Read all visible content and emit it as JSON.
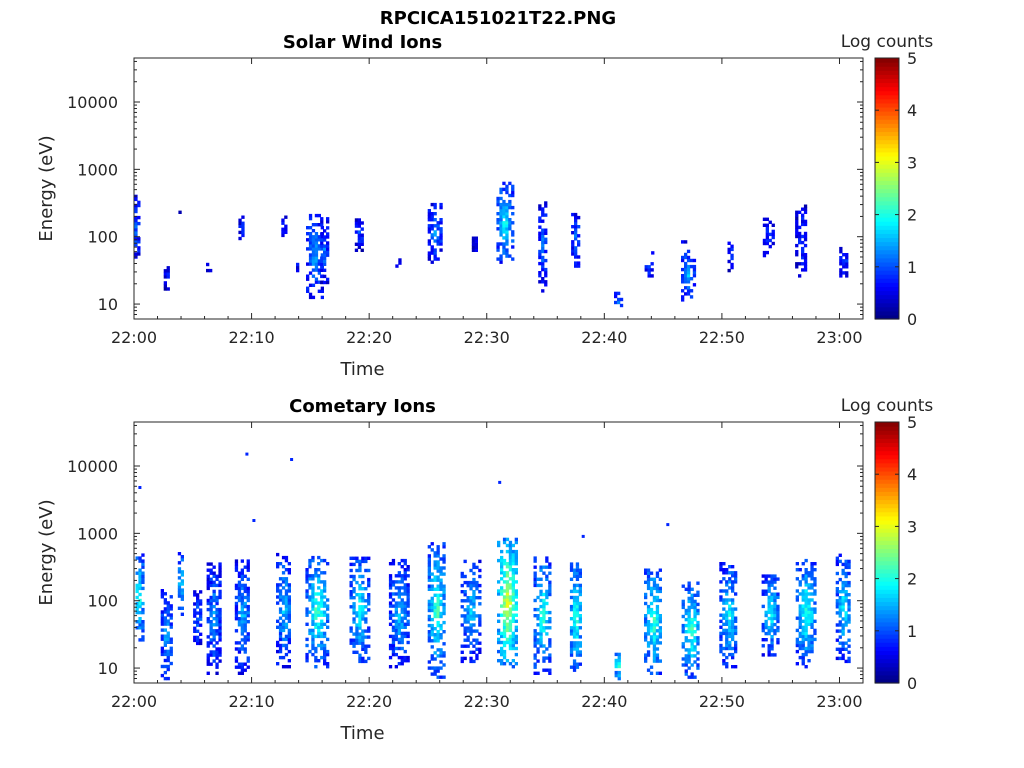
{
  "figure_title": "RPCICA151021T22.PNG",
  "chart_data": [
    {
      "type": "heatmap",
      "title": "Solar Wind Ions",
      "xlabel": "Time",
      "ylabel": "Energy (eV)",
      "x_tick_labels": [
        "22:00",
        "22:10",
        "22:20",
        "22:30",
        "22:40",
        "22:50",
        "23:00"
      ],
      "x_ticks_minutes": [
        0,
        10,
        20,
        30,
        40,
        50,
        60
      ],
      "xlim_minutes": [
        0,
        62
      ],
      "y_scale": "log",
      "ylim": [
        6,
        45000
      ],
      "y_tick_values": [
        10,
        100,
        1000,
        10000
      ],
      "y_tick_labels": [
        "10",
        "100",
        "1000",
        "10000"
      ],
      "colorbar": {
        "label": "Log counts",
        "range": [
          0,
          5
        ],
        "tick_labels": [
          "0",
          "1",
          "2",
          "3",
          "4",
          "5"
        ],
        "colormap": "jet"
      },
      "bursts": [
        {
          "t": 0.2,
          "w": 0.6,
          "elo": 35,
          "ehi": 420,
          "lvl": 0.9
        },
        {
          "t": 2.8,
          "w": 0.3,
          "elo": 16,
          "ehi": 45,
          "lvl": 0.6
        },
        {
          "t": 4.0,
          "w": 0.2,
          "elo": 220,
          "ehi": 260,
          "lvl": 0.6
        },
        {
          "t": 6.4,
          "w": 0.3,
          "elo": 30,
          "ehi": 40,
          "lvl": 0.6
        },
        {
          "t": 6.7,
          "w": 0.2,
          "elo": 160,
          "ehi": 190,
          "lvl": 0.6
        },
        {
          "t": 9.2,
          "w": 0.4,
          "elo": 90,
          "ehi": 190,
          "lvl": 0.7
        },
        {
          "t": 12.8,
          "w": 0.3,
          "elo": 100,
          "ehi": 190,
          "lvl": 0.7
        },
        {
          "t": 13.8,
          "w": 0.3,
          "elo": 30,
          "ehi": 40,
          "lvl": 0.6
        },
        {
          "t": 15.4,
          "w": 1.3,
          "elo": 12,
          "ehi": 200,
          "lvl": 1.2
        },
        {
          "t": 16.2,
          "w": 0.5,
          "elo": 20,
          "ehi": 180,
          "lvl": 1.0
        },
        {
          "t": 18.2,
          "w": 0.3,
          "elo": 330,
          "ehi": 360,
          "lvl": 0.6
        },
        {
          "t": 19.2,
          "w": 0.6,
          "elo": 60,
          "ehi": 200,
          "lvl": 0.8
        },
        {
          "t": 22.5,
          "w": 0.3,
          "elo": 35,
          "ehi": 45,
          "lvl": 0.6
        },
        {
          "t": 25.6,
          "w": 1.0,
          "elo": 40,
          "ehi": 300,
          "lvl": 1.1
        },
        {
          "t": 29.0,
          "w": 0.3,
          "elo": 60,
          "ehi": 100,
          "lvl": 0.6
        },
        {
          "t": 31.6,
          "w": 1.3,
          "elo": 40,
          "ehi": 600,
          "lvl": 1.6
        },
        {
          "t": 34.8,
          "w": 0.6,
          "elo": 15,
          "ehi": 330,
          "lvl": 1.0
        },
        {
          "t": 37.6,
          "w": 0.6,
          "elo": 35,
          "ehi": 220,
          "lvl": 1.0
        },
        {
          "t": 41.2,
          "w": 0.5,
          "elo": 6,
          "ehi": 16,
          "lvl": 1.0
        },
        {
          "t": 43.8,
          "w": 0.5,
          "elo": 25,
          "ehi": 45,
          "lvl": 0.9
        },
        {
          "t": 44.2,
          "w": 0.2,
          "elo": 55,
          "ehi": 65,
          "lvl": 0.7
        },
        {
          "t": 47.2,
          "w": 1.1,
          "elo": 11,
          "ehi": 60,
          "lvl": 1.3
        },
        {
          "t": 46.8,
          "w": 0.3,
          "elo": 80,
          "ehi": 90,
          "lvl": 0.7
        },
        {
          "t": 50.8,
          "w": 0.4,
          "elo": 30,
          "ehi": 85,
          "lvl": 0.8
        },
        {
          "t": 54.0,
          "w": 0.8,
          "elo": 50,
          "ehi": 190,
          "lvl": 0.7
        },
        {
          "t": 56.8,
          "w": 0.9,
          "elo": 25,
          "ehi": 300,
          "lvl": 0.8
        },
        {
          "t": 60.4,
          "w": 0.6,
          "elo": 25,
          "ehi": 65,
          "lvl": 0.8
        }
      ]
    },
    {
      "type": "heatmap",
      "title": "Cometary Ions",
      "xlabel": "Time",
      "ylabel": "Energy (eV)",
      "x_tick_labels": [
        "22:00",
        "22:10",
        "22:20",
        "22:30",
        "22:40",
        "22:50",
        "23:00"
      ],
      "x_ticks_minutes": [
        0,
        10,
        20,
        30,
        40,
        50,
        60
      ],
      "xlim_minutes": [
        0,
        62
      ],
      "y_scale": "log",
      "ylim": [
        6,
        45000
      ],
      "y_tick_values": [
        10,
        100,
        1000,
        10000
      ],
      "y_tick_labels": [
        "10",
        "100",
        "1000",
        "10000"
      ],
      "colorbar": {
        "label": "Log counts",
        "range": [
          0,
          5
        ],
        "tick_labels": [
          "0",
          "1",
          "2",
          "3",
          "4",
          "5"
        ],
        "colormap": "jet"
      },
      "bursts": [
        {
          "t": 0.4,
          "w": 0.8,
          "elo": 25,
          "ehi": 500,
          "lvl": 1.8
        },
        {
          "t": 2.8,
          "w": 0.8,
          "elo": 6,
          "ehi": 150,
          "lvl": 1.3
        },
        {
          "t": 4.0,
          "w": 0.3,
          "elo": 60,
          "ehi": 500,
          "lvl": 1.6
        },
        {
          "t": 5.5,
          "w": 0.7,
          "elo": 20,
          "ehi": 150,
          "lvl": 1.0
        },
        {
          "t": 6.8,
          "w": 1.0,
          "elo": 8,
          "ehi": 350,
          "lvl": 1.2
        },
        {
          "t": 9.3,
          "w": 1.2,
          "elo": 8,
          "ehi": 400,
          "lvl": 1.3
        },
        {
          "t": 12.8,
          "w": 1.2,
          "elo": 10,
          "ehi": 500,
          "lvl": 1.4
        },
        {
          "t": 15.6,
          "w": 1.8,
          "elo": 10,
          "ehi": 450,
          "lvl": 1.9
        },
        {
          "t": 19.2,
          "w": 1.5,
          "elo": 12,
          "ehi": 450,
          "lvl": 1.7
        },
        {
          "t": 22.6,
          "w": 1.6,
          "elo": 10,
          "ehi": 400,
          "lvl": 1.4
        },
        {
          "t": 25.8,
          "w": 1.4,
          "elo": 7,
          "ehi": 700,
          "lvl": 1.9
        },
        {
          "t": 28.7,
          "w": 1.6,
          "elo": 12,
          "ehi": 400,
          "lvl": 1.4
        },
        {
          "t": 31.8,
          "w": 1.6,
          "elo": 10,
          "ehi": 800,
          "lvl": 2.6
        },
        {
          "t": 34.8,
          "w": 1.4,
          "elo": 8,
          "ehi": 450,
          "lvl": 1.8
        },
        {
          "t": 37.6,
          "w": 0.8,
          "elo": 8,
          "ehi": 350,
          "lvl": 1.9
        },
        {
          "t": 41.2,
          "w": 0.4,
          "elo": 6,
          "ehi": 18,
          "lvl": 1.8
        },
        {
          "t": 44.2,
          "w": 1.4,
          "elo": 8,
          "ehi": 300,
          "lvl": 1.9
        },
        {
          "t": 47.4,
          "w": 1.4,
          "elo": 7,
          "ehi": 180,
          "lvl": 1.9
        },
        {
          "t": 50.6,
          "w": 1.4,
          "elo": 10,
          "ehi": 350,
          "lvl": 1.6
        },
        {
          "t": 54.2,
          "w": 1.4,
          "elo": 15,
          "ehi": 250,
          "lvl": 1.6
        },
        {
          "t": 57.2,
          "w": 1.6,
          "elo": 10,
          "ehi": 400,
          "lvl": 1.8
        },
        {
          "t": 60.4,
          "w": 1.2,
          "elo": 12,
          "ehi": 480,
          "lvl": 1.6
        }
      ],
      "isolated_points": [
        {
          "t": 0.5,
          "e": 4800,
          "lvl": 0.8
        },
        {
          "t": 9.6,
          "e": 15000,
          "lvl": 0.8
        },
        {
          "t": 10.2,
          "e": 1550,
          "lvl": 0.8
        },
        {
          "t": 13.4,
          "e": 12500,
          "lvl": 0.8
        },
        {
          "t": 31.1,
          "e": 5700,
          "lvl": 0.8
        },
        {
          "t": 38.2,
          "e": 900,
          "lvl": 0.8
        },
        {
          "t": 45.4,
          "e": 1350,
          "lvl": 0.8
        }
      ]
    }
  ]
}
